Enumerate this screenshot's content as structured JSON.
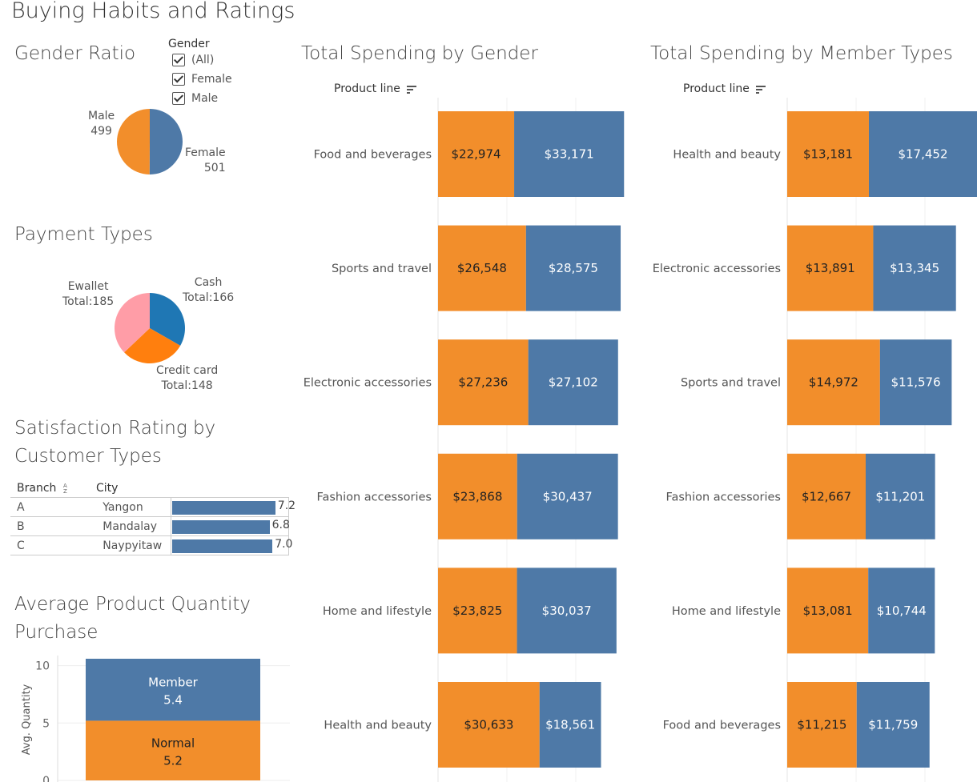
{
  "page_title": "Buying Habits and Ratings",
  "colors": {
    "orange": "#f28e2b",
    "blue": "#4e79a7",
    "pink": "#ff9da7",
    "pay_blue": "#1f77b4",
    "pay_orange": "#ff7f0e"
  },
  "gender_filter": {
    "title": "Gender",
    "options": [
      {
        "label": "(All)",
        "checked": true
      },
      {
        "label": "Female",
        "checked": true
      },
      {
        "label": "Male",
        "checked": true
      }
    ]
  },
  "chart_data": [
    {
      "id": "gender_ratio",
      "type": "pie",
      "title": "Gender Ratio",
      "labels": [
        "Male",
        "Female"
      ],
      "values": [
        499,
        501
      ],
      "colors": [
        "#f28e2b",
        "#4e79a7"
      ]
    },
    {
      "id": "payment_types",
      "type": "pie",
      "title": "Payment Types",
      "labels": [
        "Ewallet",
        "Cash",
        "Credit card"
      ],
      "value_labels": [
        "Total:185",
        "Total:166",
        "Total:148"
      ],
      "values": [
        185,
        166,
        148
      ],
      "colors": [
        "#ff9da7",
        "#1f77b4",
        "#ff7f0e"
      ]
    },
    {
      "id": "satisfaction",
      "type": "table",
      "title": "Satisfaction Rating by Customer Types",
      "columns": [
        "Branch",
        "City"
      ],
      "rows": [
        {
          "branch": "A",
          "city": "Yangon",
          "value": 7.2,
          "label": "7.2"
        },
        {
          "branch": "B",
          "city": "Mandalay",
          "value": 6.8,
          "label": "6.8"
        },
        {
          "branch": "C",
          "city": "Naypyitaw",
          "value": 7.0,
          "label": "7.0"
        }
      ],
      "xlim": [
        0,
        7.8
      ]
    },
    {
      "id": "avg_quantity",
      "type": "bar",
      "title": "Average Product Quantity Purchase",
      "ylabel": "Avg. Quantity",
      "yticks": [
        "10",
        "5",
        "0"
      ],
      "ylim": [
        0,
        10.6
      ],
      "stacked": true,
      "series": [
        {
          "name": "Normal",
          "value": 5.2,
          "label": "5.2",
          "color": "#f28e2b"
        },
        {
          "name": "Member",
          "value": 5.4,
          "label": "5.4",
          "color": "#4e79a7"
        }
      ]
    },
    {
      "id": "spending_gender",
      "type": "bar",
      "orientation": "horizontal",
      "stacked": true,
      "title": "Total Spending by Gender",
      "category_header": "Product line",
      "categories": [
        "Food and beverages",
        "Sports and travel",
        "Electronic accessories",
        "Fashion accessories",
        "Home and lifestyle",
        "Health and beauty"
      ],
      "series": [
        {
          "values": [
            22974,
            26548,
            27236,
            23868,
            23825,
            30633
          ],
          "labels": [
            "$22,974",
            "$26,548",
            "$27,236",
            "$23,868",
            "$23,825",
            "$30,633"
          ],
          "color": "#f28e2b"
        },
        {
          "values": [
            33171,
            28575,
            27102,
            30437,
            30037,
            18561
          ],
          "labels": [
            "$33,171",
            "$28,575",
            "$27,102",
            "$30,437",
            "$30,037",
            "$18,561"
          ],
          "color": "#4e79a7"
        }
      ],
      "xlim": [
        0,
        58500
      ]
    },
    {
      "id": "spending_member",
      "type": "bar",
      "orientation": "horizontal",
      "stacked": true,
      "title": "Total Spending by Member Types",
      "category_header": "Product line",
      "categories": [
        "Health and beauty",
        "Electronic accessories",
        "Sports and travel",
        "Fashion accessories",
        "Home and lifestyle",
        "Food and beverages"
      ],
      "series": [
        {
          "values": [
            13181,
            13891,
            14972,
            12667,
            13081,
            11215
          ],
          "labels": [
            "$13,181",
            "$13,891",
            "$14,972",
            "$12,667",
            "$13,081",
            "$11,215"
          ],
          "color": "#f28e2b"
        },
        {
          "values": [
            17452,
            13345,
            11576,
            11201,
            10744,
            11759
          ],
          "labels": [
            "$17,452",
            "$13,345",
            "$11,576",
            "$11,201",
            "$10,744",
            "$11,759"
          ],
          "color": "#4e79a7"
        }
      ],
      "xlim": [
        0,
        30633
      ]
    }
  ]
}
